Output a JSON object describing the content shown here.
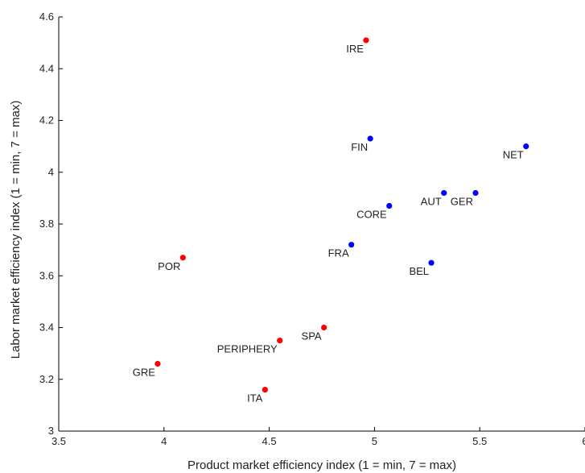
{
  "chart_data": {
    "type": "scatter",
    "title": "",
    "xlabel": "Product market efficiency index (1 = min, 7 = max)",
    "ylabel": "Labor market efficiency index (1 = min, 7 = max)",
    "xlim": [
      3.5,
      6
    ],
    "ylim": [
      3,
      4.6
    ],
    "xticks": [
      3.5,
      4,
      4.5,
      5,
      5.5,
      6
    ],
    "yticks": [
      3,
      3.2,
      3.4,
      3.6,
      3.8,
      4,
      4.2,
      4.4,
      4.6
    ],
    "xtick_labels": [
      "3.5",
      "4",
      "4.5",
      "5",
      "5.5",
      "6"
    ],
    "ytick_labels": [
      "3",
      "3.2",
      "3.4",
      "3.6",
      "3.8",
      "4",
      "4.2",
      "4.4",
      "4.6"
    ],
    "grid": false,
    "colors": {
      "periphery": "#ff0000",
      "core": "#0000ff"
    },
    "series": [
      {
        "group": "periphery",
        "points": [
          {
            "label": "IRE",
            "x": 4.96,
            "y": 4.51
          },
          {
            "label": "POR",
            "x": 4.09,
            "y": 3.67
          },
          {
            "label": "SPA",
            "x": 4.76,
            "y": 3.4
          },
          {
            "label": "PERIPHERY",
            "x": 4.55,
            "y": 3.35
          },
          {
            "label": "GRE",
            "x": 3.97,
            "y": 3.26
          },
          {
            "label": "ITA",
            "x": 4.48,
            "y": 3.16
          }
        ]
      },
      {
        "group": "core",
        "points": [
          {
            "label": "FIN",
            "x": 4.98,
            "y": 4.13
          },
          {
            "label": "NET",
            "x": 5.72,
            "y": 4.1
          },
          {
            "label": "AUT",
            "x": 5.33,
            "y": 3.92
          },
          {
            "label": "GER",
            "x": 5.48,
            "y": 3.92
          },
          {
            "label": "CORE",
            "x": 5.07,
            "y": 3.87
          },
          {
            "label": "FRA",
            "x": 4.89,
            "y": 3.72
          },
          {
            "label": "BEL",
            "x": 5.27,
            "y": 3.65
          }
        ]
      }
    ]
  }
}
